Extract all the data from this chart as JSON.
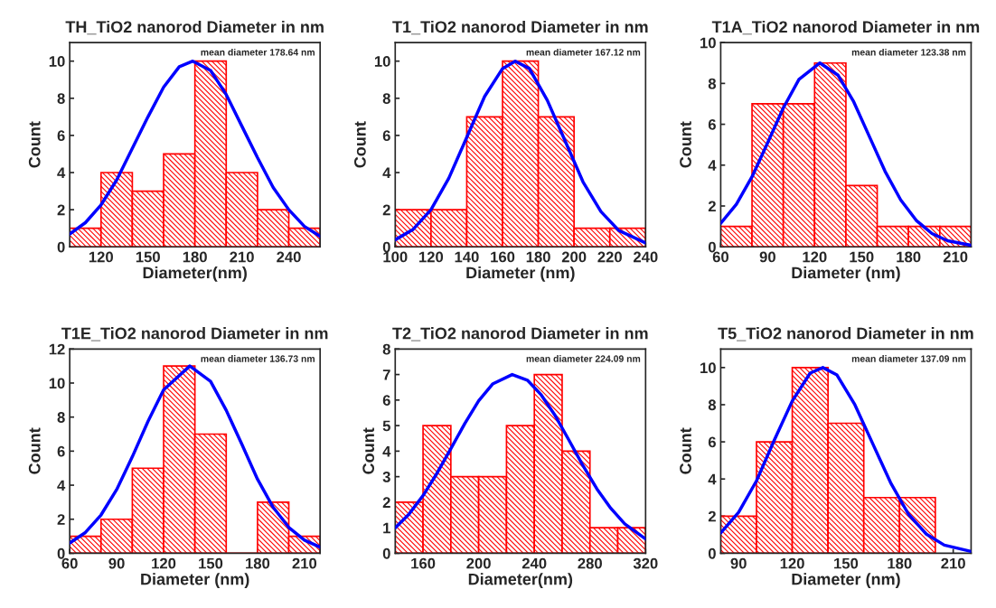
{
  "chart_data": [
    {
      "type": "histogram",
      "title": "TH_TiO2 nanorod Diameter in nm",
      "xlabel": "Diameter(nm)",
      "ylabel": "Count",
      "annotations": [
        "mean diameter 178.64 nm"
      ],
      "xlim": [
        100,
        260
      ],
      "xticks": [
        120,
        150,
        180,
        210,
        240
      ],
      "ylim": [
        0,
        11
      ],
      "yticks": [
        0,
        2,
        4,
        6,
        8,
        10
      ],
      "grid": false,
      "series": [
        {
          "type": "histogram",
          "color": "#ff0000",
          "bins": [
            100,
            120,
            140,
            160,
            180,
            200,
            220,
            240,
            260
          ],
          "values": [
            1,
            4,
            3,
            5,
            10,
            4,
            2,
            1
          ]
        },
        {
          "type": "line",
          "color": "#0000ff",
          "x": [
            100,
            110,
            120,
            130,
            140,
            150,
            160,
            170,
            178.64,
            190,
            200,
            210,
            220,
            230,
            240,
            250,
            260
          ],
          "values": [
            0.69,
            1.3,
            2.26,
            3.6,
            5.3,
            7.0,
            8.6,
            9.7,
            10,
            9.5,
            8.2,
            6.5,
            4.8,
            3.2,
            2.0,
            1.1,
            0.57
          ]
        }
      ]
    },
    {
      "type": "histogram",
      "title": "T1_TiO2 nanorod Diameter in nm",
      "xlabel": "Diameter (nm)",
      "ylabel": "Count",
      "annotations": [
        "mean diameter 167.12 nm"
      ],
      "xlim": [
        100,
        240
      ],
      "xticks": [
        100,
        120,
        140,
        160,
        180,
        200,
        220,
        240
      ],
      "ylim": [
        0,
        11
      ],
      "yticks": [
        0,
        2,
        4,
        6,
        8,
        10
      ],
      "grid": false,
      "series": [
        {
          "type": "histogram",
          "color": "#ff0000",
          "bins": [
            100,
            120,
            140,
            160,
            180,
            200,
            220,
            240
          ],
          "values": [
            2,
            2,
            7,
            10,
            7,
            1,
            1
          ]
        },
        {
          "type": "line",
          "color": "#0000ff",
          "x": [
            100,
            110,
            120,
            130,
            140,
            150,
            160,
            167.12,
            175,
            185,
            195,
            205,
            215,
            225,
            240
          ],
          "values": [
            0.38,
            0.94,
            2.0,
            3.7,
            5.9,
            8.1,
            9.6,
            10,
            9.6,
            7.9,
            5.7,
            3.5,
            1.9,
            0.88,
            0.21
          ]
        }
      ]
    },
    {
      "type": "histogram",
      "title": "T1A_TiO2 nanorod Diameter in nm",
      "xlabel": "Diameter (nm)",
      "ylabel": "Count",
      "annotations": [
        "mean diameter 123.38 nm"
      ],
      "xlim": [
        60,
        220
      ],
      "xticks": [
        60,
        90,
        120,
        150,
        180,
        210
      ],
      "ylim": [
        0,
        10
      ],
      "yticks": [
        0,
        2,
        4,
        6,
        8,
        10
      ],
      "grid": false,
      "series": [
        {
          "type": "histogram",
          "color": "#ff0000",
          "bins": [
            60,
            80,
            100,
            120,
            140,
            160,
            180,
            200,
            220
          ],
          "values": [
            1,
            7,
            7,
            9,
            3,
            1,
            1,
            1
          ]
        },
        {
          "type": "line",
          "color": "#0000ff",
          "x": [
            60,
            70,
            80,
            90,
            100,
            110,
            123.38,
            135,
            145,
            155,
            165,
            175,
            185,
            195,
            205,
            220
          ],
          "values": [
            1.15,
            2.08,
            3.43,
            5.1,
            6.8,
            8.2,
            9,
            8.4,
            7.1,
            5.4,
            3.7,
            2.3,
            1.29,
            0.65,
            0.3,
            0.08
          ]
        }
      ]
    },
    {
      "type": "histogram",
      "title": "T1E_TiO2 nanorod Diameter in nm",
      "xlabel": "Diameter (nm)",
      "ylabel": "Count",
      "annotations": [
        "mean diameter 136.73 nm"
      ],
      "xlim": [
        60,
        220
      ],
      "xticks": [
        60,
        90,
        120,
        150,
        180,
        210
      ],
      "ylim": [
        0,
        12
      ],
      "yticks": [
        0,
        2,
        4,
        6,
        8,
        10,
        12
      ],
      "grid": false,
      "series": [
        {
          "type": "histogram",
          "color": "#ff0000",
          "bins": [
            60,
            80,
            100,
            120,
            140,
            160,
            180,
            200,
            220
          ],
          "values": [
            1,
            2,
            5,
            11,
            7,
            0,
            3,
            1
          ]
        },
        {
          "type": "line",
          "color": "#0000ff",
          "x": [
            60,
            70,
            80,
            90,
            100,
            110,
            120,
            136.73,
            150,
            160,
            170,
            180,
            190,
            200,
            210,
            220
          ],
          "values": [
            0.6,
            1.22,
            2.25,
            3.74,
            5.67,
            7.74,
            9.6,
            11,
            10.1,
            8.4,
            6.4,
            4.35,
            2.7,
            1.52,
            0.77,
            0.36
          ]
        }
      ]
    },
    {
      "type": "histogram",
      "title": "T2_TiO2 nanorod Diameter in nm",
      "xlabel": "Diameter(nm)",
      "ylabel": "Count",
      "annotations": [
        "mean diameter 224.09 nm"
      ],
      "xlim": [
        140,
        320
      ],
      "xticks": [
        160,
        200,
        240,
        280,
        320
      ],
      "ylim": [
        0,
        8
      ],
      "yticks": [
        0,
        1,
        2,
        3,
        4,
        5,
        6,
        7,
        8
      ],
      "grid": false,
      "series": [
        {
          "type": "histogram",
          "color": "#ff0000",
          "bins": [
            140,
            160,
            180,
            200,
            220,
            240,
            260,
            280,
            300,
            320
          ],
          "values": [
            2,
            5,
            3,
            3,
            5,
            7,
            4,
            1,
            1
          ]
        },
        {
          "type": "line",
          "color": "#0000ff",
          "x": [
            140,
            150,
            160,
            170,
            180,
            190,
            200,
            210,
            224.09,
            235,
            245,
            255,
            265,
            275,
            285,
            295,
            305,
            320
          ],
          "values": [
            1.0,
            1.54,
            2.26,
            3.13,
            4.1,
            5.08,
            5.97,
            6.63,
            7,
            6.78,
            6.2,
            5.39,
            4.42,
            3.43,
            2.52,
            1.76,
            1.15,
            0.56
          ]
        }
      ]
    },
    {
      "type": "histogram",
      "title": "T5_TiO2 nanorod Diameter in nm",
      "xlabel": "Diameter (nm)",
      "ylabel": "Count",
      "annotations": [
        "mean diameter 137.09 nm"
      ],
      "xlim": [
        80,
        220
      ],
      "xticks": [
        90,
        120,
        150,
        180,
        210
      ],
      "ylim": [
        0,
        11
      ],
      "yticks": [
        0,
        2,
        4,
        6,
        8,
        10
      ],
      "grid": false,
      "series": [
        {
          "type": "histogram",
          "color": "#ff0000",
          "bins": [
            80,
            100,
            120,
            140,
            160,
            180,
            200
          ],
          "values": [
            2,
            6,
            10,
            7,
            3,
            3
          ]
        },
        {
          "type": "line",
          "color": "#0000ff",
          "x": [
            80,
            90,
            100,
            110,
            120,
            130,
            137.09,
            145,
            155,
            165,
            175,
            185,
            195,
            205,
            220
          ],
          "values": [
            1.1,
            2.2,
            3.9,
            6.1,
            8.2,
            9.7,
            10,
            9.6,
            8.0,
            5.9,
            3.8,
            2.1,
            1.03,
            0.44,
            0.1
          ]
        }
      ]
    }
  ]
}
